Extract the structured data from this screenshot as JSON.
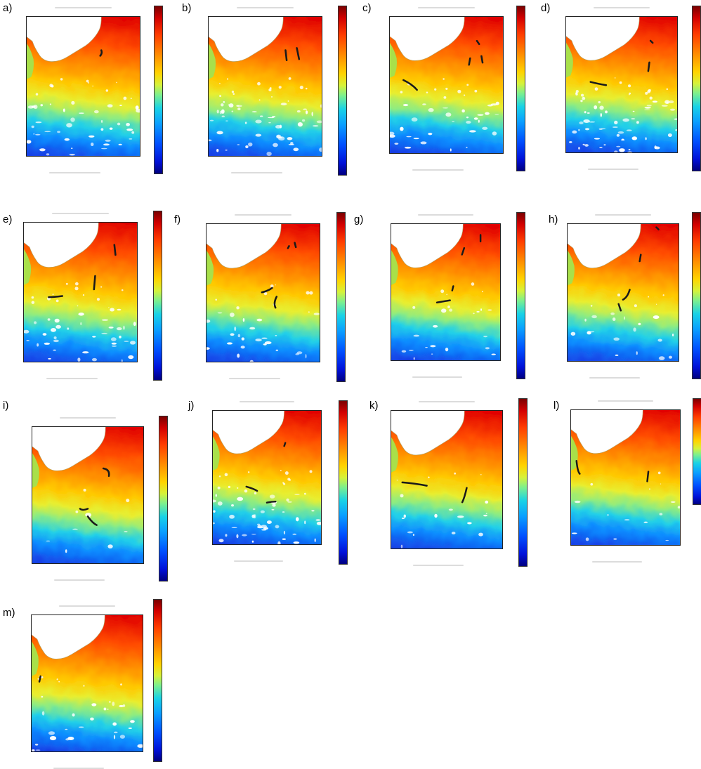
{
  "panels": [
    {
      "label": "a)"
    },
    {
      "label": "b)"
    },
    {
      "label": "c)"
    },
    {
      "label": "d)"
    },
    {
      "label": "e)"
    },
    {
      "label": "f)"
    },
    {
      "label": "g)"
    },
    {
      "label": "h)"
    },
    {
      "label": "i)"
    },
    {
      "label": "j)"
    },
    {
      "label": "k)"
    },
    {
      "label": "l)"
    },
    {
      "label": "m)"
    }
  ],
  "colors": {
    "land": "#ffffff",
    "frame": "#222222",
    "front_marker": "#1a1a1a",
    "warm": "#e31a00",
    "cold": "#1a2cd0"
  }
}
